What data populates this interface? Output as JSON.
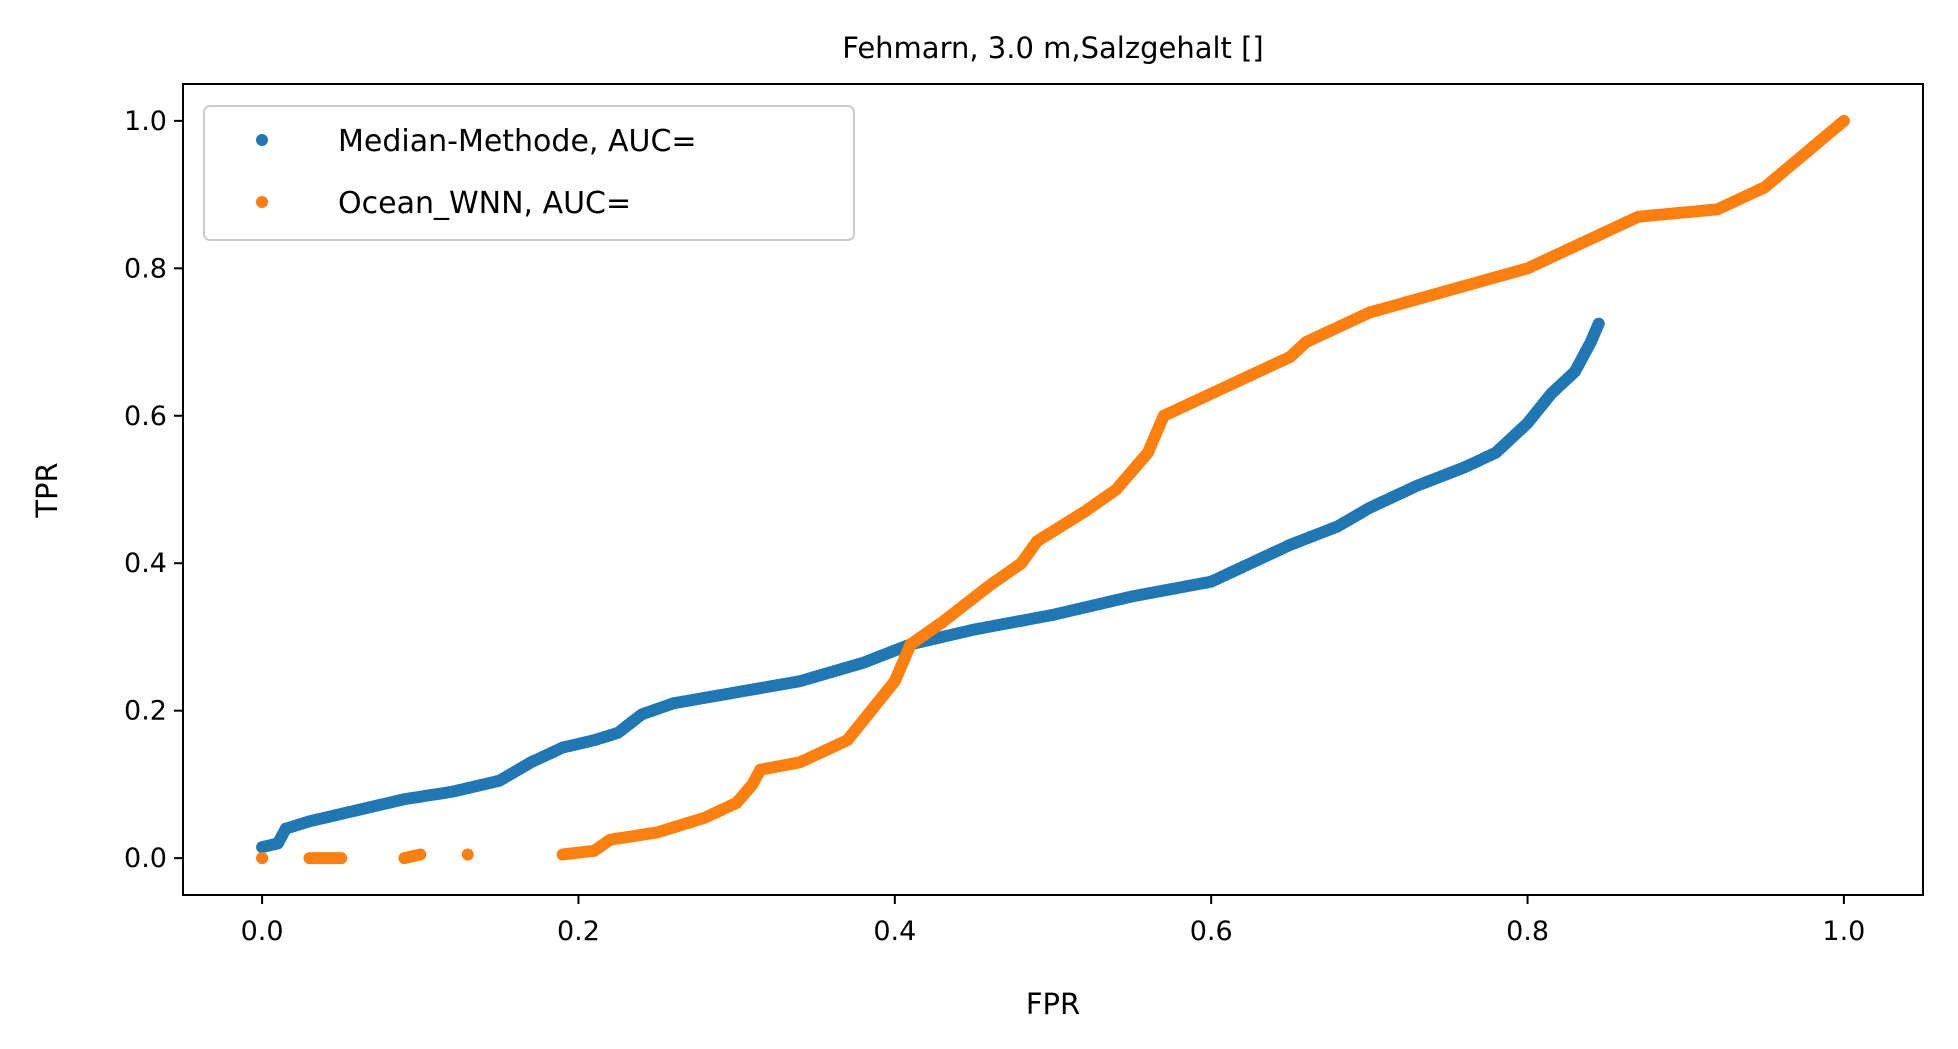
{
  "chart_data": {
    "type": "scatter",
    "title": "Fehmarn, 3.0 m,Salzgehalt []",
    "xlabel": "FPR",
    "ylabel": "TPR",
    "xlim": [
      -0.05,
      1.05
    ],
    "ylim": [
      -0.05,
      1.05
    ],
    "x_ticks": [
      0.0,
      0.2,
      0.4,
      0.6,
      0.8,
      1.0
    ],
    "x_tick_labels": [
      "0.0",
      "0.2",
      "0.4",
      "0.6",
      "0.8",
      "1.0"
    ],
    "y_ticks": [
      0.0,
      0.2,
      0.4,
      0.6,
      0.8,
      1.0
    ],
    "y_tick_labels": [
      "0.0",
      "0.2",
      "0.4",
      "0.6",
      "0.8",
      "1.0"
    ],
    "grid": false,
    "legend_position": "top-left",
    "series": [
      {
        "name": "Median-Methode, AUC=",
        "color": "#1f77b4",
        "points": [
          [
            0.0,
            0.015
          ],
          [
            0.01,
            0.02
          ],
          [
            0.015,
            0.04
          ],
          [
            0.03,
            0.05
          ],
          [
            0.05,
            0.06
          ],
          [
            0.07,
            0.07
          ],
          [
            0.09,
            0.08
          ],
          [
            0.12,
            0.09
          ],
          [
            0.15,
            0.105
          ],
          [
            0.17,
            0.13
          ],
          [
            0.19,
            0.15
          ],
          [
            0.21,
            0.16
          ],
          [
            0.225,
            0.17
          ],
          [
            0.24,
            0.195
          ],
          [
            0.26,
            0.21
          ],
          [
            0.3,
            0.225
          ],
          [
            0.34,
            0.24
          ],
          [
            0.38,
            0.265
          ],
          [
            0.41,
            0.29
          ],
          [
            0.45,
            0.31
          ],
          [
            0.5,
            0.33
          ],
          [
            0.55,
            0.355
          ],
          [
            0.6,
            0.375
          ],
          [
            0.63,
            0.405
          ],
          [
            0.65,
            0.425
          ],
          [
            0.68,
            0.45
          ],
          [
            0.7,
            0.475
          ],
          [
            0.73,
            0.505
          ],
          [
            0.76,
            0.53
          ],
          [
            0.78,
            0.55
          ],
          [
            0.8,
            0.59
          ],
          [
            0.815,
            0.63
          ],
          [
            0.83,
            0.66
          ],
          [
            0.84,
            0.7
          ],
          [
            0.845,
            0.725
          ]
        ]
      },
      {
        "name": "Ocean_WNN, AUC=",
        "color": "#ff7f0e",
        "points": [
          [
            0.0,
            0.0
          ],
          [
            0.03,
            0.0
          ],
          [
            0.04,
            0.0
          ],
          [
            0.05,
            0.0
          ],
          [
            0.09,
            0.0
          ],
          [
            0.1,
            0.005
          ],
          [
            0.13,
            0.005
          ],
          [
            0.19,
            0.005
          ],
          [
            0.21,
            0.01
          ],
          [
            0.22,
            0.025
          ],
          [
            0.25,
            0.035
          ],
          [
            0.28,
            0.055
          ],
          [
            0.3,
            0.075
          ],
          [
            0.31,
            0.1
          ],
          [
            0.315,
            0.12
          ],
          [
            0.34,
            0.13
          ],
          [
            0.37,
            0.16
          ],
          [
            0.385,
            0.2
          ],
          [
            0.4,
            0.24
          ],
          [
            0.41,
            0.29
          ],
          [
            0.43,
            0.32
          ],
          [
            0.46,
            0.37
          ],
          [
            0.48,
            0.4
          ],
          [
            0.49,
            0.43
          ],
          [
            0.52,
            0.47
          ],
          [
            0.54,
            0.5
          ],
          [
            0.56,
            0.55
          ],
          [
            0.57,
            0.6
          ],
          [
            0.6,
            0.63
          ],
          [
            0.65,
            0.68
          ],
          [
            0.66,
            0.7
          ],
          [
            0.7,
            0.74
          ],
          [
            0.75,
            0.77
          ],
          [
            0.8,
            0.8
          ],
          [
            0.83,
            0.83
          ],
          [
            0.87,
            0.87
          ],
          [
            0.92,
            0.88
          ],
          [
            0.95,
            0.91
          ],
          [
            1.0,
            1.0
          ]
        ]
      }
    ]
  }
}
